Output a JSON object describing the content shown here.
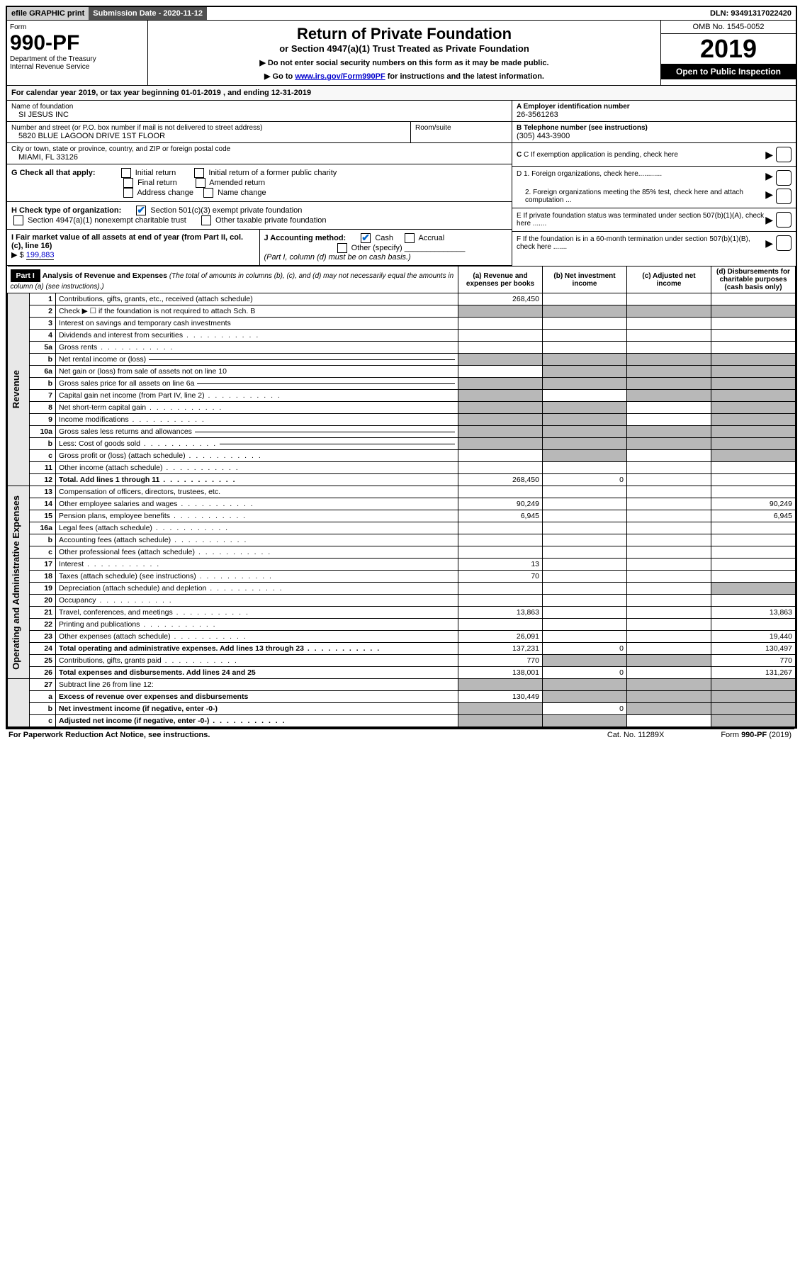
{
  "topbar": {
    "efile": "efile GRAPHIC print",
    "submission": "Submission Date - 2020-11-12",
    "dln": "DLN: 93491317022420"
  },
  "header": {
    "form_label": "Form",
    "form_number": "990-PF",
    "dept1": "Department of the Treasury",
    "dept2": "Internal Revenue Service",
    "title": "Return of Private Foundation",
    "subtitle": "or Section 4947(a)(1) Trust Treated as Private Foundation",
    "instr1": "▶ Do not enter social security numbers on this form as it may be made public.",
    "instr2_pre": "▶ Go to ",
    "instr2_link": "www.irs.gov/Form990PF",
    "instr2_post": " for instructions and the latest information.",
    "omb": "OMB No. 1545-0052",
    "year": "2019",
    "open": "Open to Public Inspection"
  },
  "cal_year": "For calendar year 2019, or tax year beginning 01-01-2019                           , and ending 12-31-2019",
  "info": {
    "name_label": "Name of foundation",
    "name": "SI JESUS INC",
    "addr_label": "Number and street (or P.O. box number if mail is not delivered to street address)",
    "addr": "5820 BLUE LAGOON DRIVE 1ST FLOOR",
    "room_label": "Room/suite",
    "city_label": "City or town, state or province, country, and ZIP or foreign postal code",
    "city": "MIAMI, FL  33126",
    "a_label": "A Employer identification number",
    "a_val": "26-3561263",
    "b_label": "B Telephone number (see instructions)",
    "b_val": "(305) 443-3900",
    "c_label": "C If exemption application is pending, check here",
    "d1": "D 1. Foreign organizations, check here............",
    "d2": "2. Foreign organizations meeting the 85% test, check here and attach computation ...",
    "e": "E If private foundation status was terminated under section 507(b)(1)(A), check here .......",
    "f": "F If the foundation is in a 60-month termination under section 507(b)(1)(B), check here ......."
  },
  "g": {
    "label": "G Check all that apply:",
    "opts": [
      "Initial return",
      "Initial return of a former public charity",
      "Final return",
      "Amended return",
      "Address change",
      "Name change"
    ]
  },
  "h": {
    "label": "H Check type of organization:",
    "opt1": "Section 501(c)(3) exempt private foundation",
    "opt2": "Section 4947(a)(1) nonexempt charitable trust",
    "opt3": "Other taxable private foundation"
  },
  "i": {
    "label": "I Fair market value of all assets at end of year (from Part II, col. (c), line 16)",
    "prefix": "▶ $",
    "val": "199,883"
  },
  "j": {
    "label": "J Accounting method:",
    "cash": "Cash",
    "accrual": "Accrual",
    "other": "Other (specify)",
    "note": "(Part I, column (d) must be on cash basis.)"
  },
  "part1": {
    "header": "Part I",
    "title": "Analysis of Revenue and Expenses",
    "note": "(The total of amounts in columns (b), (c), and (d) may not necessarily equal the amounts in column (a) (see instructions).)",
    "col_a": "(a) Revenue and expenses per books",
    "col_b": "(b) Net investment income",
    "col_c": "(c) Adjusted net income",
    "col_d": "(d) Disbursements for charitable purposes (cash basis only)"
  },
  "side_labels": {
    "revenue": "Revenue",
    "expenses": "Operating and Administrative Expenses"
  },
  "rows": [
    {
      "n": "1",
      "desc": "Contributions, gifts, grants, etc., received (attach schedule)",
      "a": "268,450",
      "s": "rev"
    },
    {
      "n": "2",
      "desc": "Check ▶ ☐ if the foundation is not required to attach Sch. B",
      "s": "rev",
      "shade_bcd": true,
      "shade_a": true
    },
    {
      "n": "3",
      "desc": "Interest on savings and temporary cash investments",
      "s": "rev"
    },
    {
      "n": "4",
      "desc": "Dividends and interest from securities",
      "s": "rev",
      "dots": true
    },
    {
      "n": "5a",
      "desc": "Gross rents",
      "s": "rev",
      "dots": true
    },
    {
      "n": "b",
      "desc": "Net rental income or (loss)",
      "s": "rev",
      "shade_all": true,
      "line": true
    },
    {
      "n": "6a",
      "desc": "Net gain or (loss) from sale of assets not on line 10",
      "s": "rev",
      "shade_bcd": true
    },
    {
      "n": "b",
      "desc": "Gross sales price for all assets on line 6a",
      "s": "rev",
      "shade_all": true,
      "line": true
    },
    {
      "n": "7",
      "desc": "Capital gain net income (from Part IV, line 2)",
      "s": "rev",
      "dots": true,
      "shade_a": true,
      "shade_cd": true
    },
    {
      "n": "8",
      "desc": "Net short-term capital gain",
      "s": "rev",
      "dots": true,
      "shade_ab": true,
      "shade_d": true
    },
    {
      "n": "9",
      "desc": "Income modifications",
      "s": "rev",
      "dots": true,
      "shade_ab": true,
      "shade_d": true
    },
    {
      "n": "10a",
      "desc": "Gross sales less returns and allowances",
      "s": "rev",
      "shade_all": true,
      "line": true
    },
    {
      "n": "b",
      "desc": "Less: Cost of goods sold",
      "s": "rev",
      "dots": true,
      "shade_all": true,
      "line": true
    },
    {
      "n": "c",
      "desc": "Gross profit or (loss) (attach schedule)",
      "s": "rev",
      "dots": true,
      "shade_b": true,
      "shade_d": true
    },
    {
      "n": "11",
      "desc": "Other income (attach schedule)",
      "s": "rev",
      "dots": true
    },
    {
      "n": "12",
      "desc": "Total. Add lines 1 through 11",
      "s": "rev",
      "dots": true,
      "bold": true,
      "a": "268,450",
      "b": "0"
    },
    {
      "n": "13",
      "desc": "Compensation of officers, directors, trustees, etc.",
      "s": "exp"
    },
    {
      "n": "14",
      "desc": "Other employee salaries and wages",
      "s": "exp",
      "dots": true,
      "a": "90,249",
      "d": "90,249"
    },
    {
      "n": "15",
      "desc": "Pension plans, employee benefits",
      "s": "exp",
      "dots": true,
      "a": "6,945",
      "d": "6,945"
    },
    {
      "n": "16a",
      "desc": "Legal fees (attach schedule)",
      "s": "exp",
      "dots": true
    },
    {
      "n": "b",
      "desc": "Accounting fees (attach schedule)",
      "s": "exp",
      "dots": true
    },
    {
      "n": "c",
      "desc": "Other professional fees (attach schedule)",
      "s": "exp",
      "dots": true
    },
    {
      "n": "17",
      "desc": "Interest",
      "s": "exp",
      "dots": true,
      "a": "13"
    },
    {
      "n": "18",
      "desc": "Taxes (attach schedule) (see instructions)",
      "s": "exp",
      "dots": true,
      "a": "70"
    },
    {
      "n": "19",
      "desc": "Depreciation (attach schedule) and depletion",
      "s": "exp",
      "dots": true,
      "shade_d": true
    },
    {
      "n": "20",
      "desc": "Occupancy",
      "s": "exp",
      "dots": true
    },
    {
      "n": "21",
      "desc": "Travel, conferences, and meetings",
      "s": "exp",
      "dots": true,
      "a": "13,863",
      "d": "13,863"
    },
    {
      "n": "22",
      "desc": "Printing and publications",
      "s": "exp",
      "dots": true
    },
    {
      "n": "23",
      "desc": "Other expenses (attach schedule)",
      "s": "exp",
      "dots": true,
      "a": "26,091",
      "d": "19,440"
    },
    {
      "n": "24",
      "desc": "Total operating and administrative expenses. Add lines 13 through 23",
      "s": "exp",
      "dots": true,
      "bold": true,
      "a": "137,231",
      "b": "0",
      "d": "130,497"
    },
    {
      "n": "25",
      "desc": "Contributions, gifts, grants paid",
      "s": "exp",
      "dots": true,
      "a": "770",
      "shade_bc": true,
      "d": "770"
    },
    {
      "n": "26",
      "desc": "Total expenses and disbursements. Add lines 24 and 25",
      "s": "exp",
      "bold": true,
      "a": "138,001",
      "b": "0",
      "d": "131,267"
    },
    {
      "n": "27",
      "desc": "Subtract line 26 from line 12:",
      "s": "none",
      "shade_all": true
    },
    {
      "n": "a",
      "desc": "Excess of revenue over expenses and disbursements",
      "s": "none",
      "bold": true,
      "a": "130,449",
      "shade_bcd": true
    },
    {
      "n": "b",
      "desc": "Net investment income (if negative, enter -0-)",
      "s": "none",
      "bold": true,
      "shade_a": true,
      "b": "0",
      "shade_cd": true
    },
    {
      "n": "c",
      "desc": "Adjusted net income (if negative, enter -0-)",
      "s": "none",
      "bold": true,
      "dots": true,
      "shade_ab": true,
      "shade_d": true
    }
  ],
  "footer": {
    "left": "For Paperwork Reduction Act Notice, see instructions.",
    "mid": "Cat. No. 11289X",
    "right": "Form 990-PF (2019)"
  }
}
